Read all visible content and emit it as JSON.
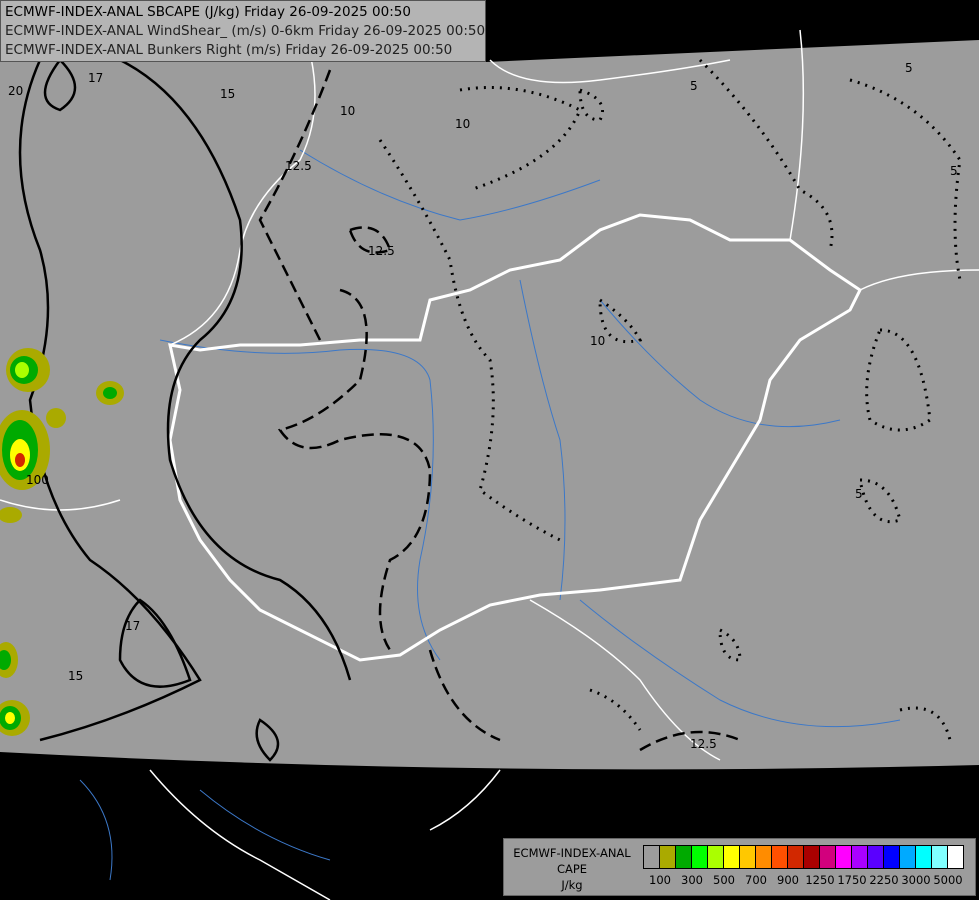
{
  "titles": [
    "ECMWF-INDEX-ANAL SBCAPE (J/kg) Friday 26-09-2025 00:50",
    "ECMWF-INDEX-ANAL WindShear_ (m/s) 0-6km Friday 26-09-2025 00:50",
    "ECMWF-INDEX-ANAL Bunkers Right (m/s) Friday 26-09-2025 00:50"
  ],
  "legend": {
    "model": "ECMWF-INDEX-ANAL",
    "variable": "CAPE",
    "unit": "J/kg",
    "colors": [
      "#9c9c9c",
      "#aaaa00",
      "#00aa00",
      "#00ff00",
      "#aaff00",
      "#ffff00",
      "#ffc800",
      "#ff8c00",
      "#ff5000",
      "#d22800",
      "#aa0000",
      "#d2007d",
      "#ff00ff",
      "#aa00ff",
      "#5a00ff",
      "#0000ff",
      "#00aaff",
      "#00ffff",
      "#80ffff",
      "#ffffff"
    ],
    "labels": [
      "100",
      "300",
      "500",
      "700",
      "900",
      "1250",
      "1750",
      "2250",
      "3000",
      "5000"
    ]
  },
  "contour_labels": {
    "shear": [
      "20",
      "17",
      "15",
      "17",
      "15"
    ],
    "bunkers_dashed": [
      "10",
      "12.5",
      "12.5",
      "12.5"
    ],
    "bunkers_dotted": [
      "10",
      "10",
      "5",
      "5",
      "5",
      "5"
    ],
    "cape": [
      "100"
    ]
  },
  "colors": {
    "map_background": "#9c9c9c",
    "outside_domain": "#000000",
    "borders": "#ffffff",
    "rivers": "#3c78c8"
  }
}
